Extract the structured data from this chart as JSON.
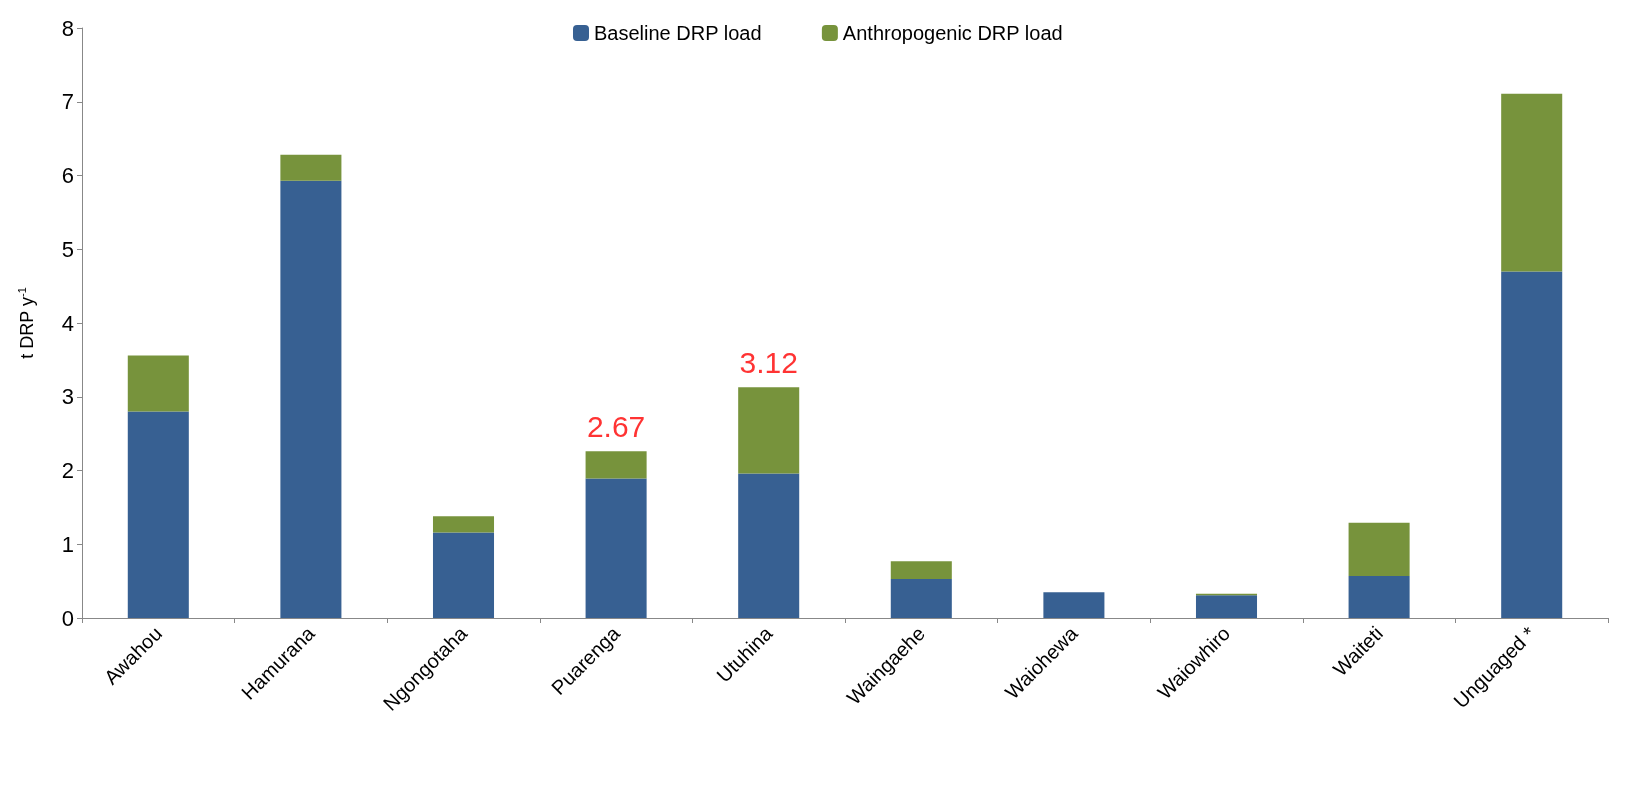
{
  "chart_data": {
    "type": "bar",
    "stacked": true,
    "ylabel": "t DRP y$^{-1}$",
    "categories": [
      "Awahou",
      "Hamurana",
      "Ngongotaha",
      "Puarenga",
      "Utuhina",
      "Waingaehe",
      "Waiohewa",
      "Waiowhiro",
      "Waiteti",
      "Unguaged *"
    ],
    "series": [
      {
        "name": "Baseline DRP load",
        "color": "#376092",
        "values": [
          2.8,
          5.93,
          1.16,
          1.89,
          1.96,
          0.53,
          0.35,
          0.31,
          0.57,
          4.7
        ]
      },
      {
        "name": "Anthropogenic DRP load",
        "color": "#77933c",
        "values": [
          0.76,
          0.35,
          0.22,
          0.37,
          1.17,
          0.24,
          0,
          0.02,
          0.72,
          2.41
        ]
      }
    ],
    "ylim": [
      0,
      8
    ],
    "yticks": [
      0,
      1,
      2,
      3,
      4,
      5,
      6,
      7,
      8
    ],
    "grid": false,
    "legend": "top",
    "annotations": [
      {
        "text": "2.67",
        "x": "Puarenga",
        "y": 2.26
      },
      {
        "text": "3.12",
        "x": "Utuhina",
        "y": 3.13
      }
    ]
  }
}
